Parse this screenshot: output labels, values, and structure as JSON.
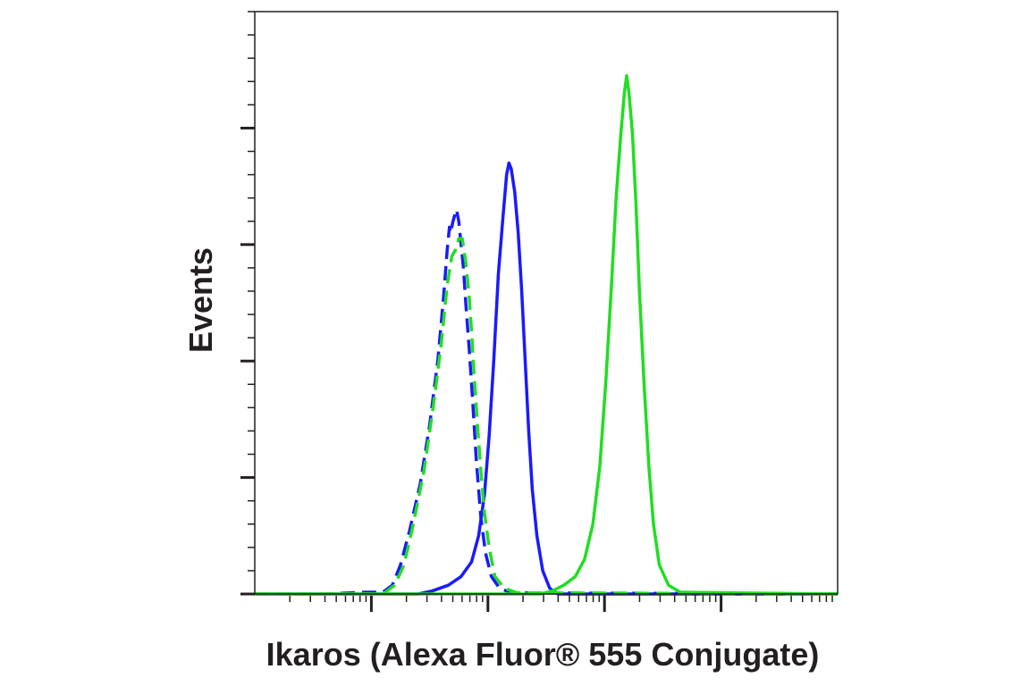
{
  "chart_data": {
    "type": "line",
    "title": "",
    "xlabel": "Ikaros (Alexa Fluor® 555 Conjugate)",
    "ylabel": "Events",
    "x_scale": "log",
    "x_decades": 5,
    "x_tick_labels_shown": false,
    "y_tick_labels_shown": false,
    "xlim": [
      0,
      5
    ],
    "ylim": [
      0,
      100
    ],
    "y_major_ticks": [
      0,
      20,
      40,
      60,
      80
    ],
    "grid": false,
    "legend": "none",
    "series": [
      {
        "color": "#1a1aff",
        "dash": "solid",
        "points": [
          [
            0,
            0
          ],
          [
            0.95,
            0
          ],
          [
            1.4,
            0
          ],
          [
            1.52,
            0.5
          ],
          [
            1.66,
            1.5
          ],
          [
            1.77,
            3
          ],
          [
            1.86,
            5.5
          ],
          [
            1.92,
            10
          ],
          [
            1.97,
            17
          ],
          [
            2.01,
            27
          ],
          [
            2.05,
            40
          ],
          [
            2.09,
            55
          ],
          [
            2.13,
            65
          ],
          [
            2.16,
            72
          ],
          [
            2.18,
            74
          ],
          [
            2.2,
            73
          ],
          [
            2.23,
            69
          ],
          [
            2.26,
            62
          ],
          [
            2.29,
            52
          ],
          [
            2.32,
            40
          ],
          [
            2.35,
            28
          ],
          [
            2.38,
            18
          ],
          [
            2.42,
            10
          ],
          [
            2.47,
            4
          ],
          [
            2.53,
            1
          ],
          [
            2.6,
            0
          ],
          [
            5,
            0
          ]
        ]
      },
      {
        "color": "#1a1aff",
        "dash": "dashed",
        "points": [
          [
            0,
            0
          ],
          [
            0.6,
            0
          ],
          [
            0.95,
            0.3
          ],
          [
            1.1,
            0.3
          ],
          [
            1.18,
            1.5
          ],
          [
            1.25,
            5
          ],
          [
            1.33,
            11
          ],
          [
            1.42,
            19
          ],
          [
            1.5,
            29
          ],
          [
            1.57,
            40
          ],
          [
            1.62,
            51
          ],
          [
            1.65,
            59
          ],
          [
            1.67,
            63
          ],
          [
            1.68,
            62
          ],
          [
            1.7,
            64
          ],
          [
            1.73,
            66
          ],
          [
            1.75,
            64
          ],
          [
            1.77,
            60
          ],
          [
            1.79,
            56
          ],
          [
            1.81,
            50
          ],
          [
            1.84,
            42
          ],
          [
            1.87,
            33
          ],
          [
            1.9,
            23
          ],
          [
            1.94,
            13
          ],
          [
            1.98,
            7
          ],
          [
            2.03,
            3
          ],
          [
            2.1,
            1
          ],
          [
            2.2,
            0.2
          ],
          [
            5,
            0
          ]
        ]
      },
      {
        "color": "#22dd22",
        "dash": "dashed",
        "points": [
          [
            0,
            0
          ],
          [
            1.1,
            0
          ],
          [
            1.2,
            1.5
          ],
          [
            1.28,
            5
          ],
          [
            1.36,
            12
          ],
          [
            1.45,
            21
          ],
          [
            1.53,
            32
          ],
          [
            1.6,
            43
          ],
          [
            1.65,
            53
          ],
          [
            1.69,
            58
          ],
          [
            1.72,
            59
          ],
          [
            1.75,
            61
          ],
          [
            1.78,
            61
          ],
          [
            1.81,
            57
          ],
          [
            1.84,
            51
          ],
          [
            1.86,
            45
          ],
          [
            1.88,
            38
          ],
          [
            1.91,
            29
          ],
          [
            1.94,
            21
          ],
          [
            1.97,
            14
          ],
          [
            2.01,
            8
          ],
          [
            2.06,
            3
          ],
          [
            2.14,
            1
          ],
          [
            2.25,
            0.2
          ],
          [
            5,
            0
          ]
        ]
      },
      {
        "color": "#22dd22",
        "dash": "solid",
        "points": [
          [
            0,
            0
          ],
          [
            2.45,
            0
          ],
          [
            2.55,
            0.5
          ],
          [
            2.65,
            1.5
          ],
          [
            2.75,
            3
          ],
          [
            2.83,
            6
          ],
          [
            2.9,
            12
          ],
          [
            2.96,
            22
          ],
          [
            3.01,
            36
          ],
          [
            3.06,
            53
          ],
          [
            3.1,
            68
          ],
          [
            3.14,
            79
          ],
          [
            3.17,
            86
          ],
          [
            3.19,
            89
          ],
          [
            3.21,
            86
          ],
          [
            3.24,
            79
          ],
          [
            3.27,
            67
          ],
          [
            3.3,
            52
          ],
          [
            3.34,
            36
          ],
          [
            3.38,
            22
          ],
          [
            3.42,
            12
          ],
          [
            3.47,
            5
          ],
          [
            3.55,
            1.5
          ],
          [
            3.65,
            0.3
          ],
          [
            5,
            0
          ]
        ]
      }
    ]
  }
}
